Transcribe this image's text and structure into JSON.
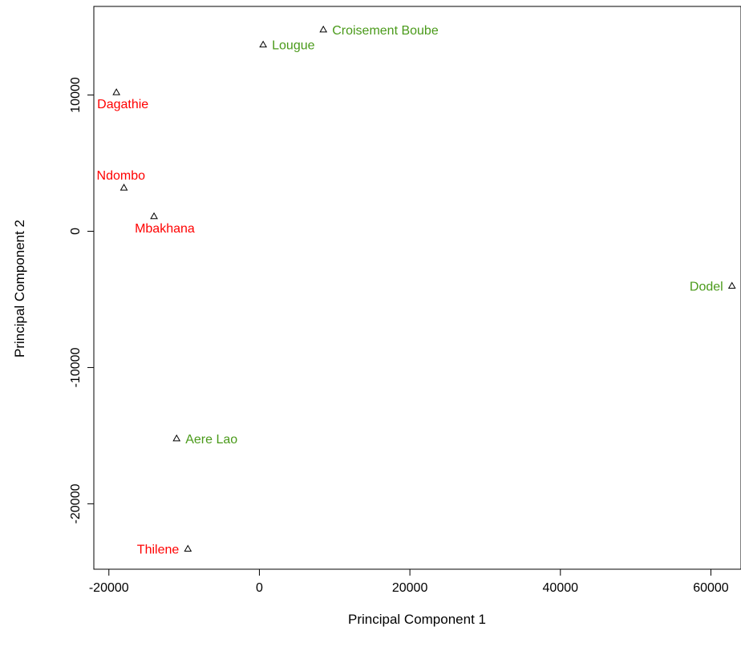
{
  "chart_data": {
    "type": "scatter",
    "title": "",
    "xlabel": "Principal Component 1",
    "ylabel": "Principal Component 2",
    "xlim": [
      -22000,
      64000
    ],
    "ylim": [
      -24800,
      16500
    ],
    "x_ticks": [
      -20000,
      0,
      20000,
      40000,
      60000
    ],
    "y_ticks": [
      -20000,
      -10000,
      0,
      10000
    ],
    "x_tick_labels": [
      "-20000",
      "0",
      "20000",
      "40000",
      "60000"
    ],
    "y_tick_labels": [
      "-20000",
      "-10000",
      "0",
      "10000"
    ],
    "marker": "open-triangle",
    "grid": false,
    "colors": {
      "red": "#ff0000",
      "green": "#4a9a1a",
      "axis": "#000000"
    },
    "points": [
      {
        "label": "Croisement Boube",
        "x": 8500,
        "y": 14800,
        "color": "green",
        "label_side": "right"
      },
      {
        "label": "Lougue",
        "x": 500,
        "y": 13700,
        "color": "green",
        "label_side": "right"
      },
      {
        "label": "Dagathie",
        "x": -19000,
        "y": 10200,
        "color": "red",
        "label_side": "below"
      },
      {
        "label": "Ndombo",
        "x": -18000,
        "y": 3200,
        "color": "red",
        "label_side": "above"
      },
      {
        "label": "Mbakhana",
        "x": -14000,
        "y": 1100,
        "color": "red",
        "label_side": "below"
      },
      {
        "label": "Dodel",
        "x": 62800,
        "y": -4000,
        "color": "green",
        "label_side": "left"
      },
      {
        "label": "Aere Lao",
        "x": -11000,
        "y": -15200,
        "color": "green",
        "label_side": "right"
      },
      {
        "label": "Thilene",
        "x": -9500,
        "y": -23300,
        "color": "red",
        "label_side": "left"
      }
    ]
  }
}
